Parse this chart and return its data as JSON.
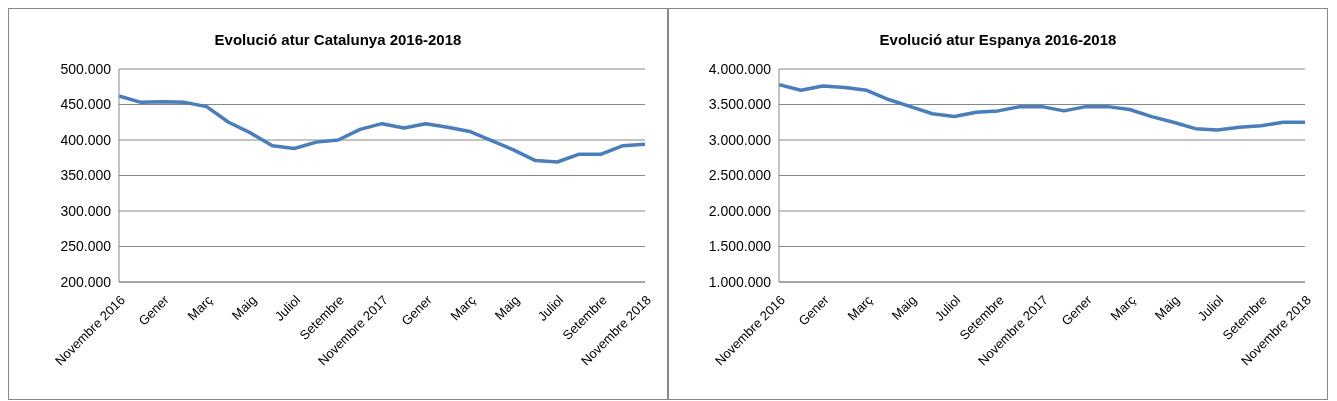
{
  "chart_data": [
    {
      "type": "line",
      "title": "Evolució atur Catalunya 2016-2018",
      "categories": [
        "Novembre 2016",
        null,
        "Gener",
        null,
        "Març",
        null,
        "Maig",
        null,
        "Juliol",
        null,
        "Setembre",
        null,
        "Novembre 2017",
        null,
        "Gener",
        null,
        "Març",
        null,
        "Maig",
        null,
        "Juliol",
        null,
        "Setembre",
        null,
        "Novembre 2018"
      ],
      "series": [
        {
          "color": "#4a7ebb",
          "values": [
            462000,
            453000,
            454000,
            453000,
            447000,
            425000,
            410000,
            392000,
            388000,
            397000,
            400000,
            415000,
            423000,
            417000,
            423000,
            418000,
            412000,
            399000,
            386000,
            371000,
            369000,
            380000,
            380000,
            392000,
            394000
          ]
        }
      ],
      "ylim": [
        200000,
        500000
      ],
      "yticks": [
        {
          "value": 200000,
          "label": "200.000"
        },
        {
          "value": 250000,
          "label": "250.000"
        },
        {
          "value": 300000,
          "label": "300.000"
        },
        {
          "value": 350000,
          "label": "350.000"
        },
        {
          "value": 400000,
          "label": "400.000"
        },
        {
          "value": 450000,
          "label": "450.000"
        },
        {
          "value": 500000,
          "label": "500.000"
        }
      ],
      "grid": "y",
      "legend": false,
      "marker": "none",
      "line_style": "solid"
    },
    {
      "type": "line",
      "title": "Evolució atur Espanya 2016-2018",
      "categories": [
        "Novembre 2016",
        null,
        "Gener",
        null,
        "Març",
        null,
        "Maig",
        null,
        "Juliol",
        null,
        "Setembre",
        null,
        "Novembre 2017",
        null,
        "Gener",
        null,
        "Març",
        null,
        "Maig",
        null,
        "Juliol",
        null,
        "Setembre",
        null,
        "Novembre 2018"
      ],
      "series": [
        {
          "color": "#4a7ebb",
          "values": [
            3780000,
            3700000,
            3760000,
            3740000,
            3700000,
            3570000,
            3470000,
            3370000,
            3330000,
            3390000,
            3410000,
            3470000,
            3470000,
            3410000,
            3470000,
            3470000,
            3430000,
            3330000,
            3250000,
            3160000,
            3140000,
            3180000,
            3200000,
            3250000,
            3250000
          ]
        }
      ],
      "ylim": [
        1000000,
        4000000
      ],
      "yticks": [
        {
          "value": 1000000,
          "label": "1.000.000"
        },
        {
          "value": 1500000,
          "label": "1.500.000"
        },
        {
          "value": 2000000,
          "label": "2.000.000"
        },
        {
          "value": 2500000,
          "label": "2.500.000"
        },
        {
          "value": 3000000,
          "label": "3.000.000"
        },
        {
          "value": 3500000,
          "label": "3.500.000"
        },
        {
          "value": 4000000,
          "label": "4.000.000"
        }
      ],
      "grid": "y",
      "legend": false,
      "marker": "none",
      "line_style": "solid"
    }
  ]
}
